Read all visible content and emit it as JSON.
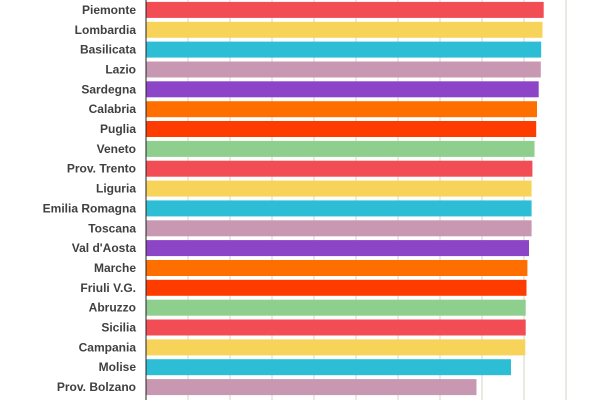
{
  "chart_data": {
    "type": "bar",
    "orientation": "horizontal",
    "title": "",
    "xlabel": "",
    "ylabel": "",
    "xlim": [
      0,
      100
    ],
    "grid": true,
    "categories": [
      "Piemonte",
      "Lombardia",
      "Basilicata",
      "Lazio",
      "Sardegna",
      "Calabria",
      "Puglia",
      "Veneto",
      "Prov. Trento",
      "Liguria",
      "Emilia Romagna",
      "Toscana",
      "Val d'Aosta",
      "Marche",
      "Friuli V.G.",
      "Abruzzo",
      "Sicilia",
      "Campania",
      "Molise",
      "Prov. Bolzano"
    ],
    "values": [
      94.7,
      94.4,
      94.1,
      94.0,
      93.5,
      93.1,
      92.9,
      92.5,
      92.0,
      91.8,
      91.8,
      91.8,
      91.2,
      90.8,
      90.6,
      90.4,
      90.4,
      90.3,
      86.9,
      78.7
    ],
    "colors": [
      "#f24c55",
      "#f8d35a",
      "#2dbed6",
      "#c898b2",
      "#8d45c8",
      "#ff6f00",
      "#ff3c00",
      "#8ecf8e"
    ]
  }
}
